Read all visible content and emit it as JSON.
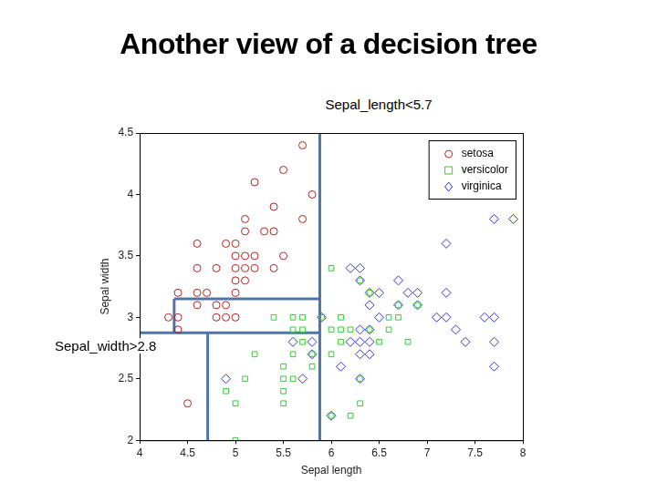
{
  "chart_data": {
    "type": "scatter",
    "title": "Another view of a decision tree",
    "annotations": [
      "Sepal_length<5.7",
      "Sepal_width>2.8"
    ],
    "x_label": "Sepal length",
    "y_label": "Sepal width",
    "xlim": [
      4,
      8
    ],
    "xticks": [
      4,
      4.5,
      5,
      5.5,
      6,
      6.5,
      7,
      7.5,
      8
    ],
    "ylim": [
      2,
      4.5
    ],
    "yticks": [
      2,
      2.5,
      3,
      3.5,
      4,
      4.5
    ],
    "grid": false,
    "legend": "northeast",
    "series": [
      {
        "name": "setosa",
        "color": "#b22222",
        "marker": "circle",
        "x": [
          5.7,
          5.5,
          5.2,
          5.8,
          5.4,
          5.1,
          5.7,
          5.1,
          5.3,
          5.4,
          4.6,
          4.9,
          5.0,
          5.0,
          5.1,
          5.2,
          5.5,
          4.6,
          4.8,
          5.0,
          5.1,
          5.2,
          5.4,
          5.0,
          5.1,
          4.4,
          4.6,
          4.7,
          5.0,
          4.6,
          4.8,
          4.9,
          4.3,
          4.4,
          4.8,
          4.9,
          5.0,
          4.4,
          4.5
        ],
        "y": [
          4.4,
          4.2,
          4.1,
          4.0,
          3.9,
          3.8,
          3.8,
          3.7,
          3.7,
          3.7,
          3.6,
          3.6,
          3.6,
          3.5,
          3.5,
          3.5,
          3.5,
          3.4,
          3.4,
          3.4,
          3.4,
          3.4,
          3.4,
          3.3,
          3.3,
          3.2,
          3.2,
          3.2,
          3.2,
          3.1,
          3.1,
          3.1,
          3.0,
          3.0,
          3.0,
          3.0,
          3.0,
          2.9,
          2.3
        ]
      },
      {
        "name": "versicolor",
        "color": "#33cc33",
        "marker": "square",
        "x": [
          6.0,
          6.3,
          6.4,
          6.7,
          6.9,
          5.4,
          5.6,
          5.7,
          5.9,
          6.1,
          6.6,
          6.7,
          5.6,
          5.7,
          6.0,
          6.1,
          6.2,
          6.4,
          6.6,
          5.7,
          6.1,
          6.5,
          6.8,
          5.2,
          5.6,
          5.8,
          6.0,
          5.5,
          5.8,
          5.1,
          5.5,
          5.6,
          6.3,
          4.9,
          5.5,
          5.0,
          5.5,
          6.3,
          6.0,
          6.2,
          5.0
        ],
        "y": [
          3.4,
          3.3,
          3.2,
          3.1,
          3.1,
          3.0,
          3.0,
          3.0,
          3.0,
          3.0,
          3.0,
          3.0,
          2.9,
          2.9,
          2.9,
          2.9,
          2.9,
          2.9,
          2.9,
          2.8,
          2.8,
          2.8,
          2.8,
          2.7,
          2.7,
          2.7,
          2.7,
          2.6,
          2.6,
          2.5,
          2.5,
          2.5,
          2.5,
          2.4,
          2.4,
          2.3,
          2.3,
          2.3,
          2.2,
          2.2,
          2.0
        ]
      },
      {
        "name": "virginica",
        "color": "#3333cc",
        "marker": "diamond",
        "x": [
          7.7,
          7.9,
          7.2,
          6.2,
          6.3,
          6.3,
          6.7,
          6.4,
          6.5,
          6.8,
          6.9,
          7.2,
          6.4,
          6.7,
          6.9,
          5.9,
          6.5,
          7.1,
          7.2,
          7.6,
          7.7,
          6.3,
          6.4,
          7.3,
          5.6,
          5.8,
          6.2,
          6.3,
          6.4,
          7.4,
          7.7,
          5.8,
          6.3,
          6.4,
          6.1,
          7.7,
          4.9,
          5.7,
          6.3,
          6.0
        ],
        "y": [
          3.8,
          3.8,
          3.6,
          3.4,
          3.4,
          3.3,
          3.3,
          3.2,
          3.2,
          3.2,
          3.2,
          3.2,
          3.1,
          3.1,
          3.1,
          3.0,
          3.0,
          3.0,
          3.0,
          3.0,
          3.0,
          2.9,
          2.9,
          2.9,
          2.8,
          2.8,
          2.8,
          2.8,
          2.8,
          2.8,
          2.8,
          2.7,
          2.7,
          2.7,
          2.6,
          2.6,
          2.5,
          2.5,
          2.5,
          2.2
        ]
      }
    ],
    "boundaries": {
      "color": "#4f74a8",
      "segments": [
        {
          "x": [
            5.88,
            5.88
          ],
          "y": [
            2,
            4.5
          ]
        },
        {
          "x": [
            4.36,
            5.88
          ],
          "y": [
            3.15,
            3.15
          ]
        },
        {
          "x": [
            4.36,
            4.36
          ],
          "y": [
            3.15,
            2.875
          ]
        },
        {
          "x": [
            4,
            5.88
          ],
          "y": [
            2.875,
            2.875
          ]
        },
        {
          "x": [
            4.71,
            4.71
          ],
          "y": [
            2.875,
            2
          ]
        }
      ]
    }
  }
}
